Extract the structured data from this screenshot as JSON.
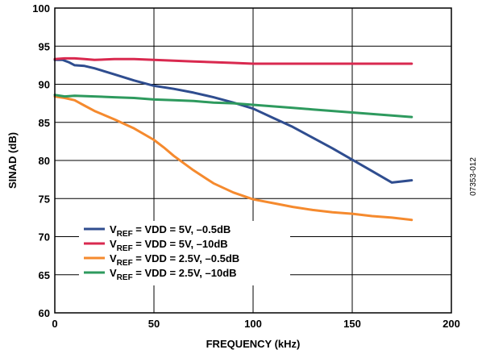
{
  "figure_id": "07353-012",
  "chart_data": {
    "type": "line",
    "title": "",
    "xlabel": "FREQUENCY (kHz)",
    "ylabel": "SINAD (dB)",
    "xlim": [
      0,
      200
    ],
    "ylim": [
      60,
      100
    ],
    "xticks": [
      0,
      50,
      100,
      150,
      200
    ],
    "yticks": [
      60,
      65,
      70,
      75,
      80,
      85,
      90,
      95,
      100
    ],
    "grid": true,
    "legend_position": "bottom-left",
    "series": [
      {
        "legend": {
          "prefix": "V",
          "sub": "REF",
          "suffix": " = VDD = 5V, –0.5dB"
        },
        "color": "#2f4d8f",
        "x": [
          0,
          4,
          7,
          10,
          15,
          20,
          25,
          30,
          40,
          50,
          60,
          70,
          80,
          90,
          100,
          110,
          120,
          130,
          140,
          150,
          160,
          170,
          180
        ],
        "y": [
          93.2,
          93.2,
          92.9,
          92.5,
          92.4,
          92.1,
          91.7,
          91.3,
          90.5,
          89.8,
          89.4,
          88.9,
          88.3,
          87.6,
          86.8,
          85.6,
          84.4,
          83.0,
          81.6,
          80.1,
          78.6,
          77.1,
          77.4
        ]
      },
      {
        "legend": {
          "prefix": "V",
          "sub": "REF",
          "suffix": " = VDD = 5V, –10dB"
        },
        "color": "#d9294f",
        "x": [
          0,
          5,
          10,
          15,
          20,
          30,
          40,
          50,
          60,
          70,
          80,
          90,
          100,
          110,
          120,
          130,
          140,
          150,
          160,
          170,
          180
        ],
        "y": [
          93.3,
          93.4,
          93.4,
          93.3,
          93.2,
          93.3,
          93.3,
          93.2,
          93.1,
          93.0,
          92.9,
          92.8,
          92.7,
          92.7,
          92.7,
          92.7,
          92.7,
          92.7,
          92.7,
          92.7,
          92.7
        ]
      },
      {
        "legend": {
          "prefix": "V",
          "sub": "REF",
          "suffix": " = VDD = 2.5V, –0.5dB"
        },
        "color": "#f58a2e",
        "x": [
          0,
          5,
          10,
          15,
          20,
          30,
          40,
          50,
          55,
          60,
          70,
          80,
          90,
          100,
          110,
          120,
          130,
          140,
          150,
          160,
          170,
          180
        ],
        "y": [
          88.4,
          88.2,
          87.9,
          87.2,
          86.5,
          85.4,
          84.2,
          82.7,
          81.7,
          80.6,
          78.7,
          77.0,
          75.8,
          74.9,
          74.4,
          73.9,
          73.5,
          73.2,
          73.0,
          72.7,
          72.5,
          72.2
        ]
      },
      {
        "legend": {
          "prefix": "V",
          "sub": "REF",
          "suffix": " = VDD = 2.5V, –10dB"
        },
        "color": "#2e9a5e",
        "x": [
          0,
          5,
          10,
          20,
          30,
          40,
          50,
          60,
          70,
          80,
          90,
          100,
          110,
          120,
          130,
          140,
          150,
          160,
          170,
          180
        ],
        "y": [
          88.6,
          88.4,
          88.5,
          88.4,
          88.3,
          88.2,
          88.0,
          87.9,
          87.8,
          87.6,
          87.5,
          87.3,
          87.1,
          86.9,
          86.7,
          86.5,
          86.3,
          86.1,
          85.9,
          85.7
        ]
      }
    ]
  }
}
